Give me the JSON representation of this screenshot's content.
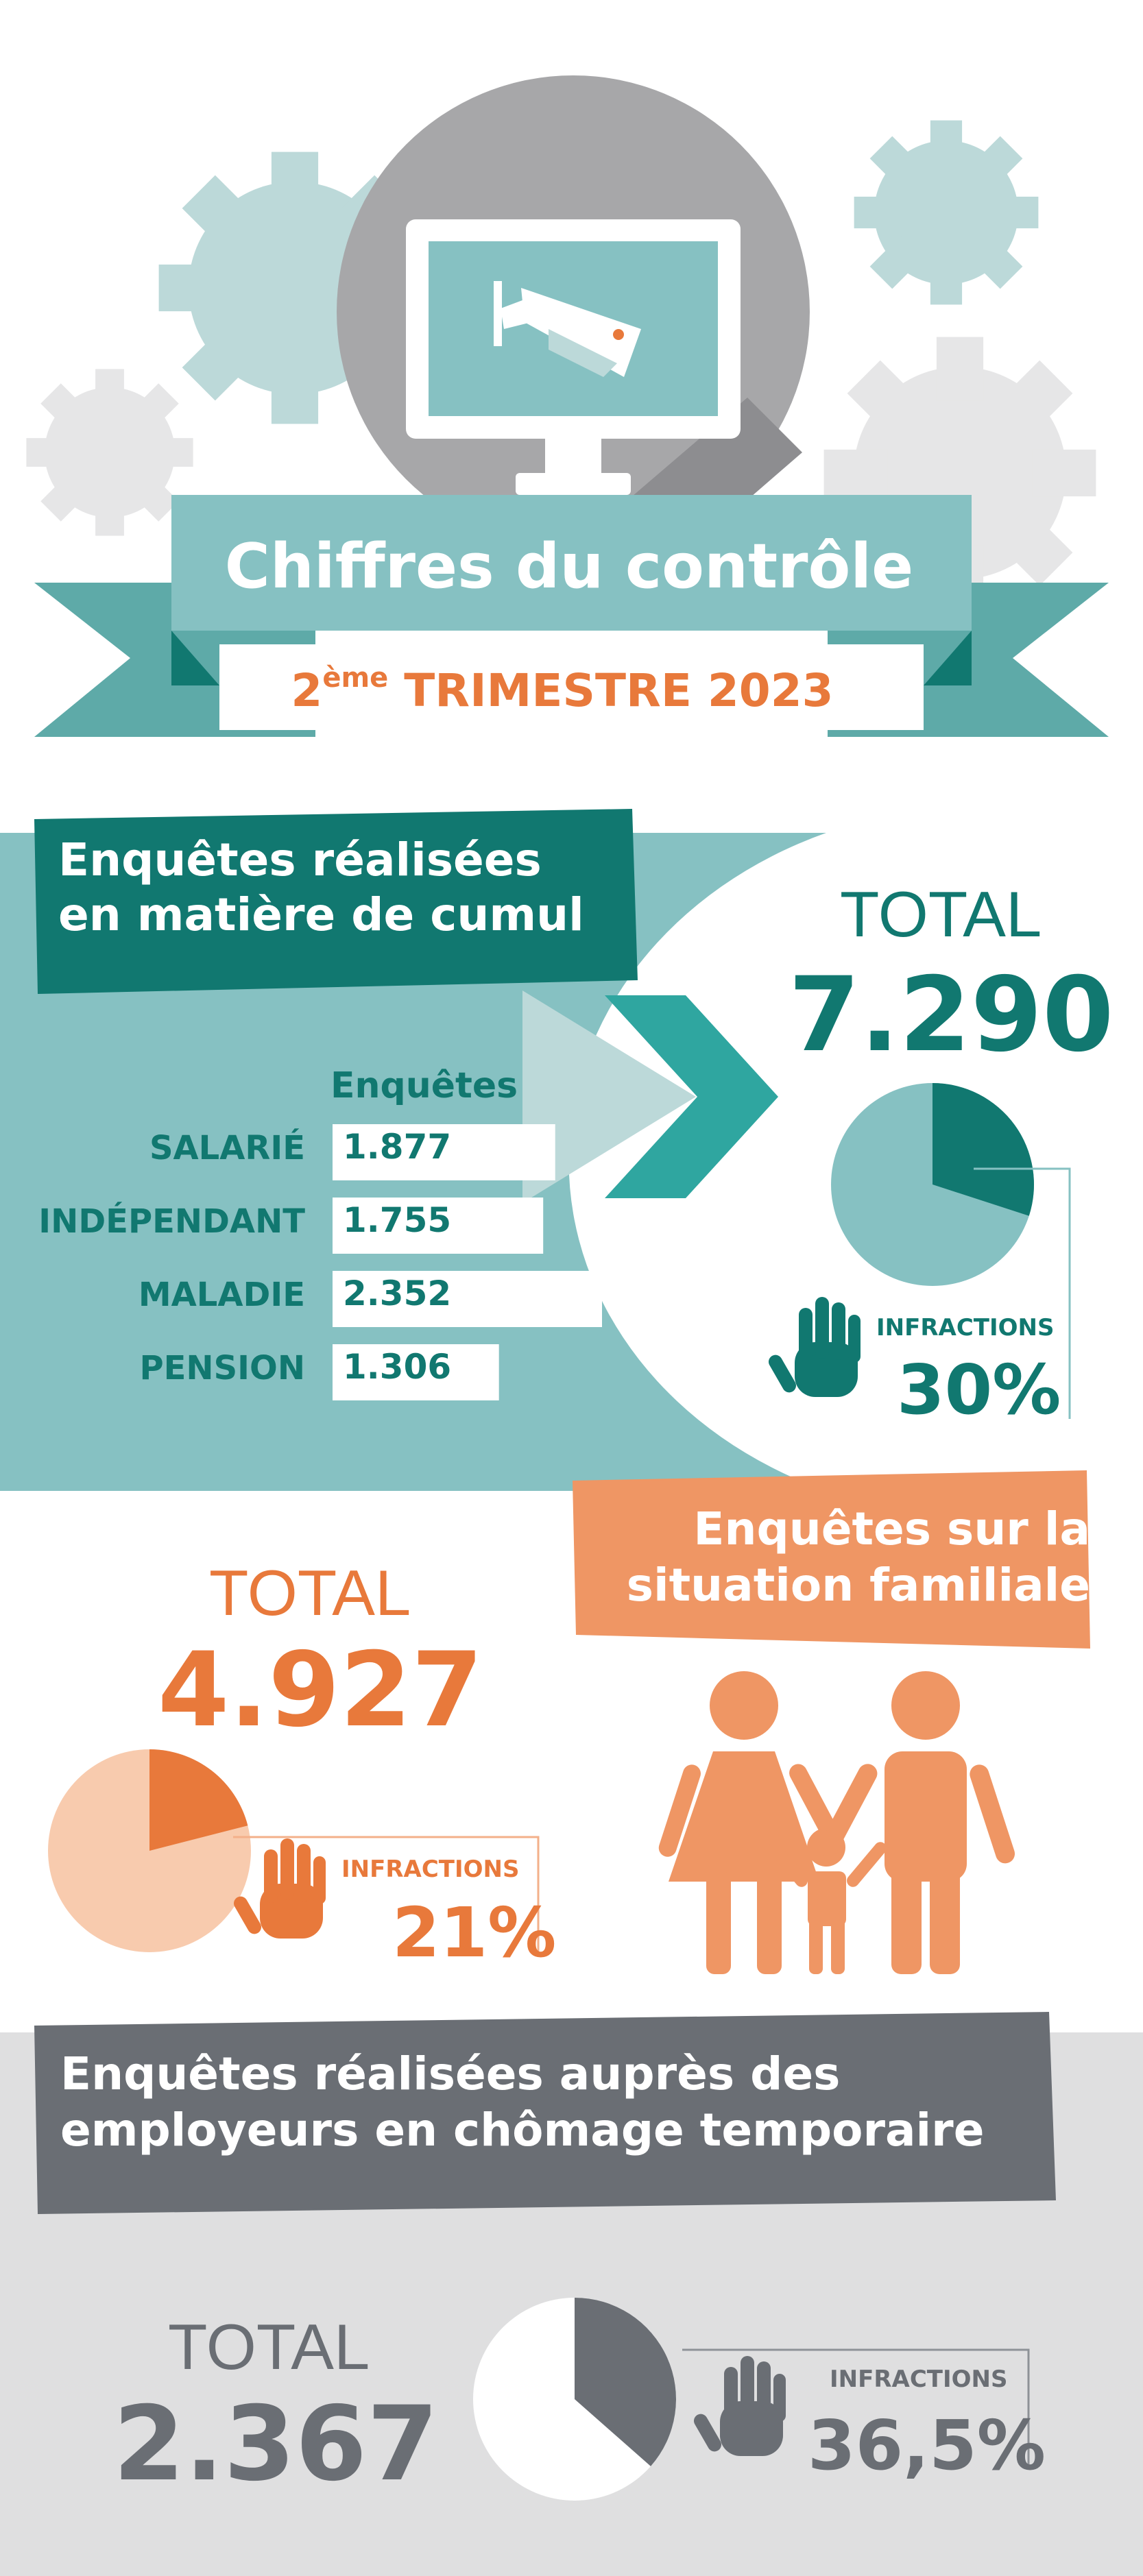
{
  "colors": {
    "teal_dark": "#117870",
    "teal_mid": "#86c1c2",
    "teal_light": "#bcd9d9",
    "orange": "#e8793b",
    "orange_light": "#f8cbae",
    "gray_dark": "#6a6e74",
    "gray_bg": "#dfdfe0"
  },
  "header": {
    "title": "Chiffres du contrôle",
    "ordinal": "2",
    "ordinal_suffix": "ème",
    "subtitle": "TRIMESTRE 2023",
    "icons": [
      "gear-icon",
      "monitor-icon",
      "security-camera-icon"
    ]
  },
  "cumul": {
    "title_line1": "Enquêtes réalisées",
    "title_line2": "en matière de cumul",
    "column_header": "Enquêtes",
    "rows": [
      {
        "label": "SALARIÉ",
        "value": "1.877"
      },
      {
        "label": "INDÉPENDANT",
        "value": "1.755"
      },
      {
        "label": "MALADIE",
        "value": "2.352"
      },
      {
        "label": "PENSION",
        "value": "1.306"
      }
    ],
    "bar_values": [
      1877,
      1755,
      2352,
      1306
    ],
    "total_label": "TOTAL",
    "total": "7.290",
    "infractions_label": "INFRACTIONS",
    "infractions_pct": "30%",
    "infractions_fraction": 0.3,
    "icon": "hand-icon"
  },
  "familiale": {
    "title_line1": "Enquêtes sur la",
    "title_line2": "situation familiale",
    "total_label": "TOTAL",
    "total": "4.927",
    "infractions_label": "INFRACTIONS",
    "infractions_pct": "21%",
    "infractions_fraction": 0.21,
    "icon": "family-icon"
  },
  "chomage": {
    "title_line1": "Enquêtes réalisées auprès des",
    "title_line2": "employeurs en chômage temporaire",
    "total_label": "TOTAL",
    "total": "2.367",
    "infractions_label": "INFRACTIONS",
    "infractions_pct": "36,5%",
    "infractions_fraction": 0.365,
    "icon": "hand-icon"
  }
}
